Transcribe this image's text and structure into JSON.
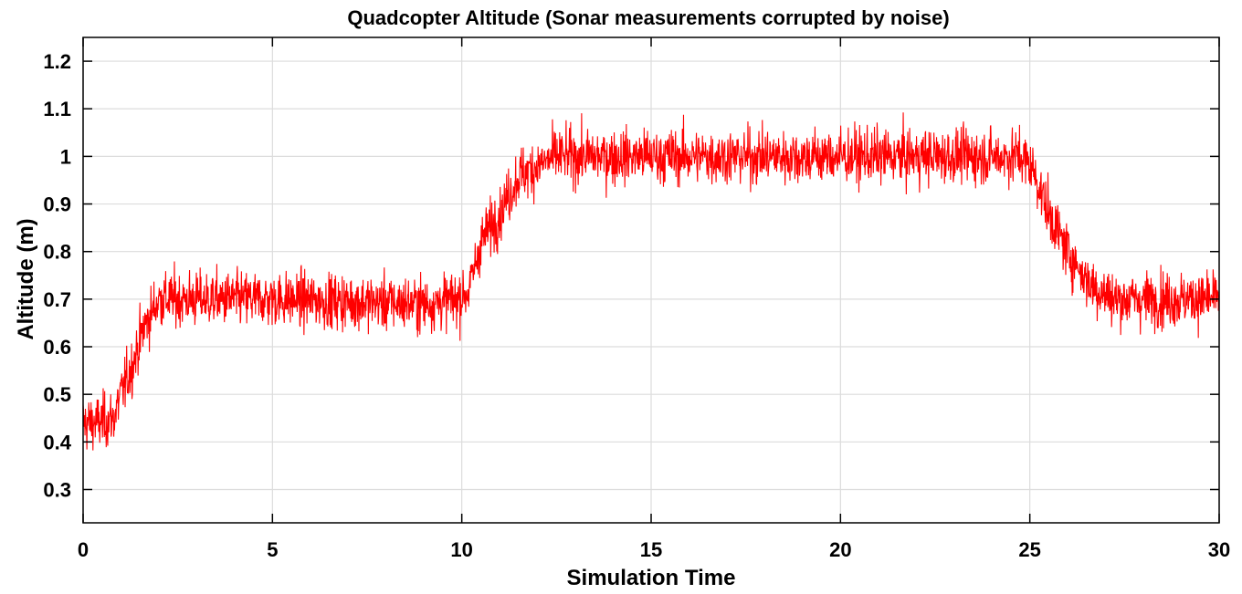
{
  "chart_data": {
    "type": "line",
    "title": "Quadcopter Altitude (Sonar measurements corrupted by noise)",
    "xlabel": "Simulation Time",
    "ylabel": "Altitude (m)",
    "xlim": [
      0,
      30
    ],
    "ylim": [
      0.23,
      1.25
    ],
    "xticks": [
      0,
      5,
      10,
      15,
      20,
      25,
      30
    ],
    "yticks": [
      0.3,
      0.4,
      0.5,
      0.6,
      0.7,
      0.8,
      0.9,
      1.0,
      1.1,
      1.2
    ],
    "xtick_labels": [
      "0",
      "5",
      "10",
      "15",
      "20",
      "25",
      "30"
    ],
    "ytick_labels": [
      "0.3",
      "0.4",
      "0.5",
      "0.6",
      "0.7",
      "0.8",
      "0.9",
      "1",
      "1.1",
      "1.2"
    ],
    "grid": true,
    "series": [
      {
        "color": "#ff0000",
        "noise_amplitude": 0.13,
        "sample_count": 3000,
        "mean_profile": {
          "x": [
            0,
            0.4,
            0.8,
            1.0,
            1.3,
            1.6,
            2.0,
            3.0,
            5.0,
            9.0,
            9.9,
            10.2,
            10.5,
            11.0,
            11.5,
            12.5,
            15,
            20,
            24.8,
            25.1,
            25.5,
            26.0,
            26.6,
            27.2,
            28,
            30
          ],
          "y": [
            0.44,
            0.44,
            0.45,
            0.5,
            0.56,
            0.64,
            0.7,
            0.7,
            0.7,
            0.69,
            0.7,
            0.72,
            0.82,
            0.88,
            0.96,
            1.0,
            1.0,
            1.0,
            1.0,
            0.97,
            0.88,
            0.8,
            0.73,
            0.7,
            0.7,
            0.7
          ]
        }
      }
    ]
  }
}
